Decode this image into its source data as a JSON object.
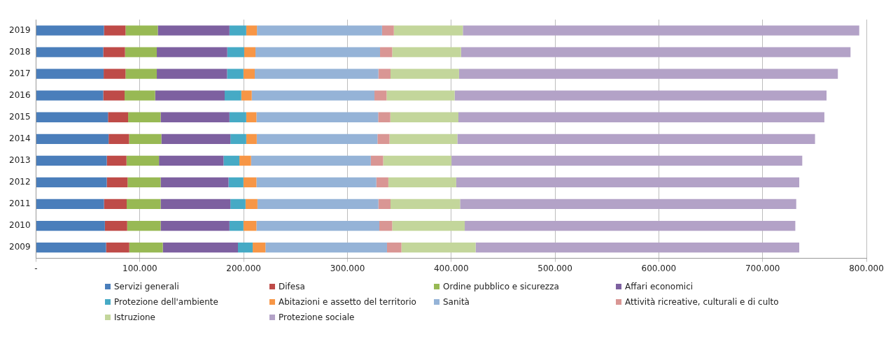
{
  "chart_data": {
    "type": "bar",
    "orientation": "horizontal",
    "stacked": true,
    "categories": [
      "2019",
      "2018",
      "2017",
      "2016",
      "2015",
      "2014",
      "2013",
      "2012",
      "2011",
      "2010",
      "2009"
    ],
    "xlim": [
      0,
      800000
    ],
    "xticks": [
      {
        "value": 0,
        "label": "-"
      },
      {
        "value": 100000,
        "label": "100.000"
      },
      {
        "value": 200000,
        "label": "200.000"
      },
      {
        "value": 300000,
        "label": "300.000"
      },
      {
        "value": 400000,
        "label": "400.000"
      },
      {
        "value": 500000,
        "label": "500.000"
      },
      {
        "value": 600000,
        "label": "600.000"
      },
      {
        "value": 700000,
        "label": "700.000"
      },
      {
        "value": 800000,
        "label": "800.000"
      }
    ],
    "grid": "x",
    "legend": "bottom",
    "series": [
      {
        "name": "Servizi generali",
        "color": "#4a7ebb",
        "values": [
          65400,
          64700,
          65100,
          64700,
          69300,
          69900,
          68100,
          68100,
          65400,
          66300,
          67400
        ]
      },
      {
        "name": "Difesa",
        "color": "#be4b48",
        "values": [
          20800,
          21000,
          21100,
          20600,
          19400,
          19700,
          19000,
          20100,
          21900,
          21500,
          22400
        ]
      },
      {
        "name": "Ordine pubblico e sicurezza",
        "color": "#98b954",
        "values": [
          31100,
          30600,
          30100,
          29400,
          31300,
          31100,
          31300,
          31800,
          32700,
          32200,
          32300
        ]
      },
      {
        "name": "Affari economici",
        "color": "#7d60a0",
        "values": [
          69000,
          67900,
          67700,
          67000,
          66300,
          66500,
          62200,
          65400,
          67200,
          66300,
          72400
        ]
      },
      {
        "name": "Protezione dell'ambiente",
        "color": "#46aac5",
        "values": [
          16200,
          16300,
          15800,
          16000,
          16200,
          15300,
          15300,
          14400,
          14600,
          13500,
          14200
        ]
      },
      {
        "name": "Abitazioni e assetto del territorio",
        "color": "#f79646",
        "values": [
          10300,
          10900,
          10900,
          10100,
          9800,
          10100,
          11200,
          12500,
          11500,
          12500,
          12300
        ]
      },
      {
        "name": "Sanità",
        "color": "#95b3d7",
        "values": [
          120500,
          120000,
          119100,
          118200,
          117300,
          116300,
          115400,
          115500,
          116500,
          118400,
          117100
        ]
      },
      {
        "name": "Attività ricreative, culturali e di culto",
        "color": "#d99694",
        "values": [
          11400,
          11700,
          11700,
          11700,
          11700,
          11600,
          11900,
          11600,
          11700,
          12400,
          13900
        ]
      },
      {
        "name": "Istruzione",
        "color": "#c3d69b",
        "values": [
          66500,
          66300,
          66000,
          65600,
          65600,
          65400,
          65800,
          65400,
          67000,
          69900,
          71500
        ]
      },
      {
        "name": "Protezione sociale",
        "color": "#b3a2c7",
        "values": [
          381900,
          375300,
          365000,
          358300,
          352600,
          344600,
          338000,
          330500,
          323900,
          318500,
          311800
        ]
      }
    ]
  }
}
